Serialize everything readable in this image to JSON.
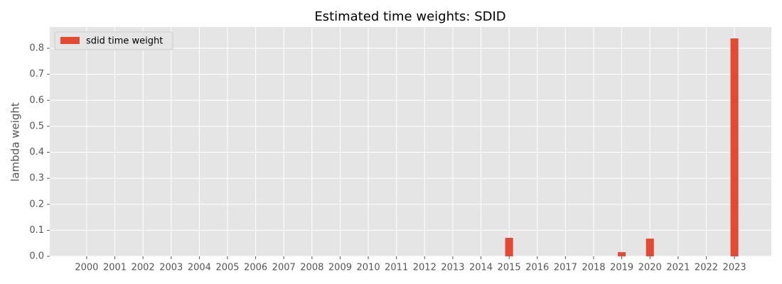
{
  "chart_data": {
    "type": "bar",
    "title": "Estimated time weights: SDID",
    "ylabel": "lambda weight",
    "categories": [
      "2000",
      "2001",
      "2002",
      "2003",
      "2004",
      "2005",
      "2006",
      "2007",
      "2008",
      "2009",
      "2010",
      "2011",
      "2012",
      "2013",
      "2014",
      "2015",
      "2016",
      "2017",
      "2018",
      "2019",
      "2020",
      "2021",
      "2022",
      "2023"
    ],
    "series": [
      {
        "name": "sdid time weight",
        "color": "#E24A33",
        "values": [
          0,
          0,
          0,
          0,
          0,
          0,
          0,
          0,
          0,
          0,
          0,
          0,
          0,
          0,
          0,
          0.071,
          0,
          0,
          0,
          0.016,
          0.068,
          0,
          0,
          0.838
        ]
      }
    ],
    "ylim": [
      0,
      0.882
    ],
    "yticks": [
      {
        "value": 0,
        "label": "0.0"
      },
      0.1,
      0.2,
      0.3,
      0.4,
      0.5,
      0.6,
      0.7,
      0.8
    ],
    "grid": true,
    "legend": "upper left"
  }
}
